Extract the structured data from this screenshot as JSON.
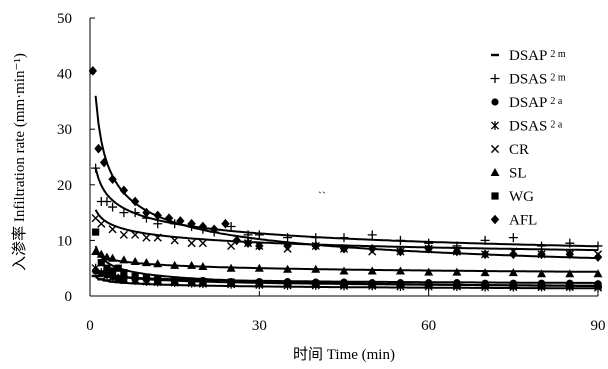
{
  "chart_data": {
    "type": "scatter",
    "title": "",
    "xlabel": "时间 Time (min)",
    "ylabel": "入渗率 Infiltration rate (mm·min⁻¹)",
    "xlim": [
      0,
      90
    ],
    "ylim": [
      0,
      50
    ],
    "xticks": [
      "0",
      "30",
      "60",
      "90"
    ],
    "yticks": [
      "0",
      "10",
      "20",
      "30",
      "40",
      "50"
    ],
    "grid": false,
    "legend": "right",
    "series": [
      {
        "name": "DSAP",
        "sub": "2 m",
        "marker": "dash",
        "fit": {
          "a": 3.4,
          "b": 0.2
        },
        "x": [
          1,
          2,
          3,
          4,
          5,
          6,
          8,
          10,
          12,
          15,
          18,
          20,
          25,
          30,
          35,
          40,
          45,
          50,
          55,
          60,
          65,
          70,
          75,
          80,
          85,
          90
        ],
        "y": [
          3.6,
          3.0,
          2.8,
          2.6,
          2.5,
          2.4,
          2.3,
          2.2,
          2.2,
          2.1,
          2.0,
          2.0,
          2.0,
          1.9,
          1.9,
          1.9,
          1.8,
          1.8,
          1.8,
          1.8,
          1.7,
          1.7,
          1.7,
          1.7,
          1.7,
          1.6
        ]
      },
      {
        "name": "DSAS",
        "sub": "2 m",
        "marker": "plus",
        "fit": {
          "a": 23.0,
          "b": 0.21
        },
        "x": [
          1,
          2,
          3,
          4,
          6,
          8,
          10,
          12,
          15,
          18,
          20,
          22,
          25,
          28,
          30,
          35,
          40,
          45,
          50,
          55,
          60,
          65,
          70,
          75,
          80,
          85,
          90
        ],
        "y": [
          23.0,
          17.0,
          17.0,
          16.0,
          15.0,
          15.0,
          14.0,
          13.0,
          13.0,
          12.5,
          12.0,
          11.5,
          12.5,
          11.0,
          11.0,
          10.5,
          10.5,
          10.5,
          11.0,
          10.0,
          9.5,
          9.0,
          10.0,
          10.5,
          9.0,
          9.5,
          9.0
        ]
      },
      {
        "name": "DSAP",
        "sub": "2 a",
        "marker": "circle",
        "fit": {
          "a": 4.4,
          "b": 0.14
        },
        "x": [
          1,
          2,
          3,
          4,
          5,
          6,
          8,
          10,
          12,
          15,
          18,
          20,
          25,
          30,
          35,
          40,
          45,
          50,
          55,
          60,
          65,
          70,
          75,
          80,
          85,
          90
        ],
        "y": [
          4.5,
          4.0,
          3.8,
          3.5,
          3.2,
          3.0,
          3.0,
          3.0,
          2.8,
          2.8,
          2.6,
          2.8,
          2.6,
          2.6,
          2.6,
          2.5,
          2.5,
          2.4,
          2.4,
          2.4,
          2.4,
          2.3,
          2.3,
          2.3,
          2.3,
          2.2
        ]
      },
      {
        "name": "DSAS",
        "sub": "2 a",
        "marker": "star",
        "fit": {
          "a": 5.0,
          "b": 0.22
        },
        "x": [
          1,
          2,
          3,
          4,
          5,
          6,
          8,
          10,
          12,
          15,
          18,
          20,
          25,
          30,
          35,
          40,
          45,
          50,
          55,
          60,
          65,
          70,
          75,
          80,
          85,
          90
        ],
        "y": [
          5.0,
          4.2,
          3.8,
          3.4,
          3.2,
          3.0,
          2.8,
          2.6,
          2.5,
          2.4,
          2.3,
          2.2,
          2.1,
          2.0,
          1.9,
          1.9,
          1.8,
          1.8,
          1.7,
          1.7,
          1.7,
          1.6,
          1.6,
          1.6,
          1.6,
          1.5
        ]
      },
      {
        "name": "CR",
        "sub": "",
        "marker": "x",
        "fit": {
          "a": 15.5,
          "b": 0.14
        },
        "x": [
          1,
          2,
          4,
          6,
          8,
          10,
          12,
          15,
          18,
          20,
          25,
          28,
          30,
          35,
          40,
          45,
          50,
          55,
          60,
          65,
          70,
          75,
          80,
          85,
          90
        ],
        "y": [
          14.0,
          13.0,
          12.0,
          11.0,
          11.0,
          10.5,
          10.5,
          10.0,
          9.5,
          9.5,
          9.0,
          9.5,
          9.0,
          8.5,
          9.0,
          8.5,
          8.0,
          8.0,
          8.5,
          8.0,
          7.5,
          8.0,
          7.5,
          7.5,
          7.5
        ]
      },
      {
        "name": "SL",
        "sub": "",
        "marker": "triangle",
        "fit": {
          "a": 7.8,
          "b": 0.13
        },
        "x": [
          1,
          2,
          3,
          4,
          6,
          8,
          10,
          12,
          15,
          18,
          20,
          25,
          30,
          35,
          40,
          45,
          50,
          55,
          60,
          65,
          70,
          75,
          80,
          85,
          90
        ],
        "y": [
          8.0,
          7.5,
          7.0,
          6.8,
          6.5,
          6.2,
          6.0,
          5.8,
          5.5,
          5.5,
          5.3,
          5.0,
          5.0,
          4.8,
          4.8,
          4.5,
          4.5,
          4.5,
          4.3,
          4.3,
          4.2,
          4.2,
          4.0,
          4.0,
          4.0
        ]
      },
      {
        "name": "WG",
        "sub": "",
        "marker": "square",
        "fit": {
          "a": 9.0,
          "b": 0.36
        },
        "x": [
          1,
          2,
          3,
          4,
          5,
          6,
          8,
          10,
          12,
          15,
          18,
          20,
          25,
          30,
          35,
          40,
          45,
          50,
          55,
          60,
          65,
          70,
          75,
          80,
          85,
          90
        ],
        "y": [
          11.5,
          6.0,
          5.0,
          4.5,
          5.0,
          4.2,
          3.5,
          3.3,
          3.0,
          2.8,
          2.6,
          2.6,
          2.5,
          2.3,
          2.2,
          2.2,
          2.1,
          2.0,
          2.0,
          2.0,
          1.9,
          1.9,
          1.8,
          1.8,
          1.8,
          1.8
        ]
      },
      {
        "name": "AFL",
        "sub": "",
        "marker": "diamond",
        "fit": {
          "a": 36.0,
          "b": 0.37
        },
        "x": [
          0.5,
          1.5,
          2.5,
          4,
          6,
          8,
          10,
          12,
          14,
          16,
          18,
          20,
          22,
          24,
          26,
          28,
          30,
          35,
          40,
          45,
          50,
          55,
          60,
          65,
          70,
          75,
          80,
          85,
          90
        ],
        "y": [
          40.5,
          26.5,
          24.0,
          21.0,
          19.0,
          17.0,
          15.0,
          14.5,
          14.0,
          13.5,
          13.0,
          12.5,
          12.0,
          13.0,
          10.0,
          9.5,
          9.0,
          9.0,
          9.0,
          8.5,
          8.5,
          8.0,
          8.5,
          8.0,
          7.5,
          7.5,
          7.5,
          7.5,
          7.0
        ]
      }
    ],
    "annotation": "``"
  }
}
